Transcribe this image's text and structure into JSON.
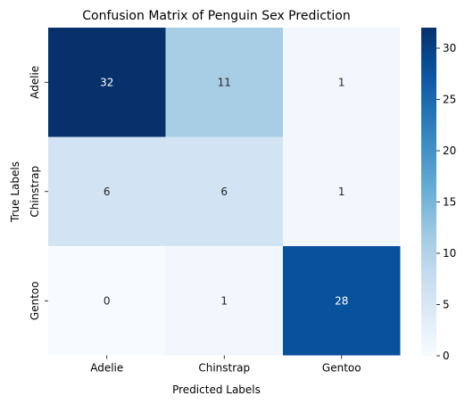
{
  "chart_data": {
    "type": "heatmap",
    "title": "Confusion Matrix of Penguin Sex Prediction",
    "xlabel": "Predicted Labels",
    "ylabel": "True Labels",
    "x_categories": [
      "Adelie",
      "Chinstrap",
      "Gentoo"
    ],
    "y_categories": [
      "Adelie",
      "Chinstrap",
      "Gentoo"
    ],
    "values": [
      [
        32,
        11,
        1
      ],
      [
        6,
        6,
        1
      ],
      [
        0,
        1,
        28
      ]
    ],
    "colormap": "Blues",
    "colorbar": {
      "min": 0,
      "max": 32,
      "ticks": [
        0,
        5,
        10,
        15,
        20,
        25,
        30
      ],
      "tick_labels": [
        "0",
        "5",
        "10",
        "15",
        "20",
        "25",
        "30"
      ]
    },
    "annotation_colors": {
      "dark": "#ffffff",
      "light": "#262626"
    },
    "grid": false
  }
}
